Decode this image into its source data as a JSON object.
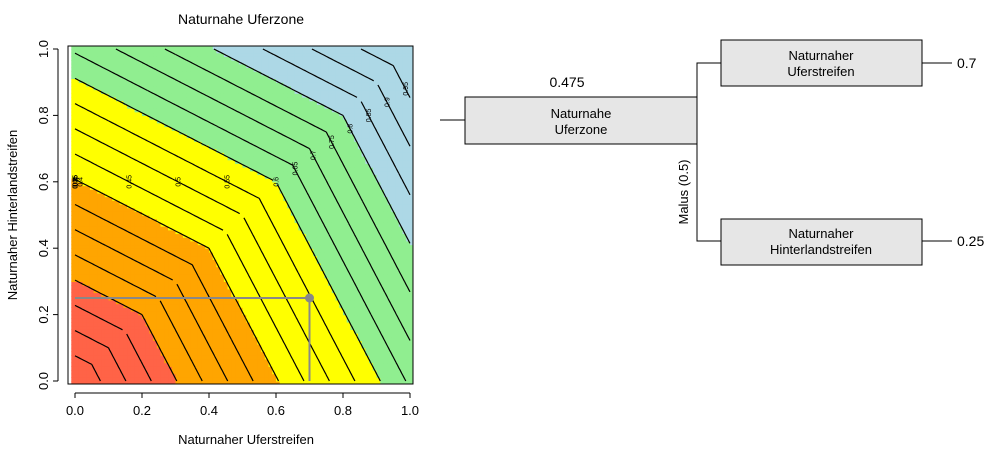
{
  "contour_plot": {
    "title": "Naturnahe Uferzone",
    "xlabel": "Naturnaher Uferstreifen",
    "ylabel": "Naturnaher Hinterlandstreifen",
    "x_ticks": [
      "0.0",
      "0.2",
      "0.4",
      "0.6",
      "0.8",
      "1.0"
    ],
    "y_ticks": [
      "0.0",
      "0.2",
      "0.4",
      "0.6",
      "0.8",
      "1.0"
    ],
    "contour_labels": [
      "0.05",
      "0.1",
      "0.15",
      "0.2",
      "0.25",
      "0.3",
      "0.35",
      "0.4",
      "0.45",
      "0.5",
      "0.55",
      "0.6",
      "0.65",
      "0.7",
      "0.75",
      "0.8",
      "0.85",
      "0.9",
      "0.95"
    ],
    "colors": {
      "red": "#ff6347",
      "orange": "#ffa500",
      "yellow": "#ffff00",
      "green": "#90ee90",
      "blue": "#add8e6",
      "marker": "#888888"
    }
  },
  "chart_data": {
    "type": "heatmap",
    "title": "Naturnahe Uferzone",
    "xlabel": "Naturnaher Uferstreifen",
    "ylabel": "Naturnaher Hinterlandstreifen",
    "xlim": [
      0,
      1
    ],
    "ylim": [
      0,
      1
    ],
    "contour_levels": [
      0.05,
      0.1,
      0.15,
      0.2,
      0.25,
      0.3,
      0.35,
      0.4,
      0.45,
      0.5,
      0.55,
      0.6,
      0.65,
      0.7,
      0.75,
      0.8,
      0.85,
      0.9,
      0.95
    ],
    "color_classes": [
      {
        "range": [
          0,
          0.2
        ],
        "color": "#ff6347"
      },
      {
        "range": [
          0.2,
          0.4
        ],
        "color": "#ffa500"
      },
      {
        "range": [
          0.4,
          0.6
        ],
        "color": "#ffff00"
      },
      {
        "range": [
          0.6,
          0.8
        ],
        "color": "#90ee90"
      },
      {
        "range": [
          0.8,
          1.0
        ],
        "color": "#add8e6"
      }
    ],
    "highlight_point": {
      "x": 0.7,
      "y": 0.25
    }
  },
  "tree": {
    "root": {
      "line1": "Naturnahe",
      "line2": "Uferzone",
      "value": "0.475"
    },
    "operator": "Malus (0.5)",
    "child1": {
      "line1": "Naturnaher",
      "line2": "Uferstreifen",
      "value": "0.7"
    },
    "child2": {
      "line1": "Naturnaher",
      "line2": "Hinterlandstreifen",
      "value": "0.25"
    }
  }
}
